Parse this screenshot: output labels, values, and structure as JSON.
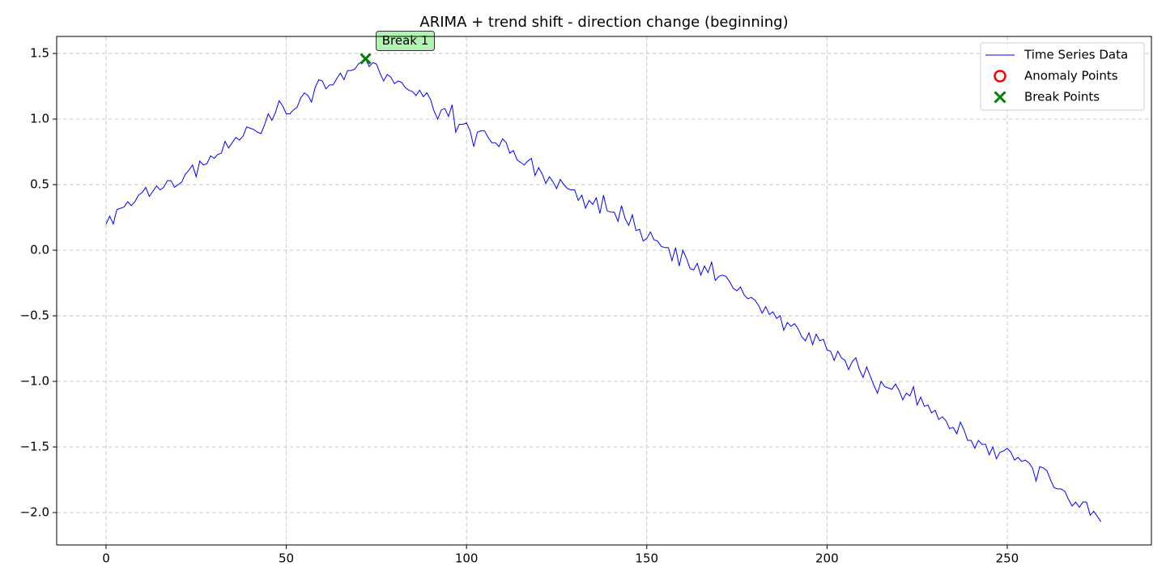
{
  "chart_data": {
    "type": "line",
    "title": "ARIMA + trend shift - direction change (beginning)",
    "xlim": [
      -13.7,
      290
    ],
    "ylim": [
      -2.247,
      1.63
    ],
    "xticks": [
      0,
      50,
      100,
      150,
      200,
      250
    ],
    "yticks": [
      {
        "value": -2.0,
        "label": "−2.0"
      },
      {
        "value": -1.5,
        "label": "−1.5"
      },
      {
        "value": -1.0,
        "label": "−1.0"
      },
      {
        "value": -0.5,
        "label": "−0.5"
      },
      {
        "value": 0.0,
        "label": "0.0"
      },
      0.5,
      {
        "value": 1.0,
        "label": "1.0"
      },
      1.5
    ],
    "grid": true,
    "legend": "upper right",
    "series": [
      {
        "name": "Time Series Data",
        "color": "#0000ff",
        "x": [
          0,
          1,
          2,
          3,
          4,
          5,
          6,
          7,
          8,
          9,
          10,
          11,
          12,
          13,
          14,
          15,
          16,
          17,
          18,
          19,
          20,
          21,
          22,
          23,
          24,
          25,
          26,
          27,
          28,
          29,
          30,
          31,
          32,
          33,
          34,
          35,
          36,
          37,
          38,
          39,
          40,
          41,
          42,
          43,
          44,
          45,
          46,
          47,
          48,
          49,
          50,
          51,
          52,
          53,
          54,
          55,
          56,
          57,
          58,
          59,
          60,
          61,
          62,
          63,
          64,
          65,
          66,
          67,
          68,
          69,
          70,
          71,
          72,
          73,
          74,
          75,
          76,
          77,
          78,
          79,
          80,
          81,
          82,
          83,
          84,
          85,
          86,
          87,
          88,
          89,
          90,
          91,
          92,
          93,
          94,
          95,
          96,
          97,
          98,
          99,
          100,
          101,
          102,
          103,
          104,
          105,
          106,
          107,
          108,
          109,
          110,
          111,
          112,
          113,
          114,
          115,
          116,
          117,
          118,
          119,
          120,
          121,
          122,
          123,
          124,
          125,
          126,
          127,
          128,
          129,
          130,
          131,
          132,
          133,
          134,
          135,
          136,
          137,
          138,
          139,
          140,
          141,
          142,
          143,
          144,
          145,
          146,
          147,
          148,
          149,
          150,
          151,
          152,
          153,
          154,
          155,
          156,
          157,
          158,
          159,
          160,
          161,
          162,
          163,
          164,
          165,
          166,
          167,
          168,
          169,
          170,
          171,
          172,
          173,
          174,
          175,
          176,
          177,
          178,
          179,
          180,
          181,
          182,
          183,
          184,
          185,
          186,
          187,
          188,
          189,
          190,
          191,
          192,
          193,
          194,
          195,
          196,
          197,
          198,
          199,
          200,
          201,
          202,
          203,
          204,
          205,
          206,
          207,
          208,
          209,
          210,
          211,
          212,
          213,
          214,
          215,
          216,
          217,
          218,
          219,
          220,
          221,
          222,
          223,
          224,
          225,
          226,
          227,
          228,
          229,
          230,
          231,
          232,
          233,
          234,
          235,
          236,
          237,
          238,
          239,
          240,
          241,
          242,
          243,
          244,
          245,
          246,
          247,
          248,
          249,
          250,
          251,
          252,
          253,
          254,
          255,
          256,
          257,
          258,
          259,
          260,
          261,
          262,
          263,
          264,
          265,
          266,
          267,
          268,
          269,
          270,
          271,
          272,
          273,
          274,
          275,
          276
        ],
        "values": [
          0.2,
          0.26,
          0.2,
          0.31,
          0.32,
          0.33,
          0.37,
          0.34,
          0.37,
          0.42,
          0.44,
          0.48,
          0.41,
          0.45,
          0.49,
          0.46,
          0.48,
          0.53,
          0.53,
          0.48,
          0.5,
          0.52,
          0.58,
          0.61,
          0.65,
          0.56,
          0.68,
          0.65,
          0.66,
          0.72,
          0.7,
          0.73,
          0.74,
          0.83,
          0.78,
          0.82,
          0.86,
          0.84,
          0.87,
          0.94,
          0.93,
          0.92,
          0.9,
          0.89,
          0.96,
          1.04,
          0.99,
          1.05,
          1.14,
          1.1,
          1.04,
          1.04,
          1.07,
          1.09,
          1.16,
          1.2,
          1.18,
          1.13,
          1.24,
          1.3,
          1.29,
          1.23,
          1.26,
          1.26,
          1.31,
          1.35,
          1.3,
          1.37,
          1.37,
          1.38,
          1.42,
          1.44,
          1.46,
          1.4,
          1.43,
          1.42,
          1.35,
          1.29,
          1.34,
          1.32,
          1.27,
          1.29,
          1.28,
          1.24,
          1.22,
          1.21,
          1.18,
          1.22,
          1.17,
          1.2,
          1.15,
          1.06,
          1.0,
          1.07,
          1.08,
          1.02,
          1.11,
          0.9,
          0.96,
          0.96,
          0.97,
          0.91,
          0.79,
          0.9,
          0.91,
          0.91,
          0.86,
          0.82,
          0.82,
          0.79,
          0.85,
          0.82,
          0.74,
          0.76,
          0.69,
          0.67,
          0.65,
          0.68,
          0.7,
          0.57,
          0.63,
          0.58,
          0.51,
          0.56,
          0.52,
          0.47,
          0.54,
          0.5,
          0.47,
          0.46,
          0.46,
          0.38,
          0.42,
          0.32,
          0.38,
          0.35,
          0.4,
          0.28,
          0.42,
          0.3,
          0.29,
          0.29,
          0.22,
          0.34,
          0.24,
          0.19,
          0.27,
          0.15,
          0.16,
          0.07,
          0.09,
          0.14,
          0.08,
          0.07,
          0.03,
          0.02,
          0.02,
          -0.08,
          0.02,
          -0.12,
          0.0,
          -0.06,
          -0.14,
          -0.15,
          -0.1,
          -0.19,
          -0.12,
          -0.17,
          -0.09,
          -0.23,
          -0.2,
          -0.19,
          -0.2,
          -0.24,
          -0.29,
          -0.31,
          -0.28,
          -0.34,
          -0.37,
          -0.36,
          -0.38,
          -0.42,
          -0.48,
          -0.43,
          -0.49,
          -0.47,
          -0.52,
          -0.5,
          -0.61,
          -0.55,
          -0.58,
          -0.56,
          -0.6,
          -0.66,
          -0.69,
          -0.63,
          -0.72,
          -0.64,
          -0.69,
          -0.68,
          -0.76,
          -0.77,
          -0.84,
          -0.77,
          -0.82,
          -0.84,
          -0.91,
          -0.85,
          -0.82,
          -0.91,
          -0.97,
          -0.89,
          -0.96,
          -1.03,
          -1.09,
          -1.0,
          -1.04,
          -1.05,
          -1.06,
          -1.02,
          -1.07,
          -1.14,
          -1.09,
          -1.11,
          -1.04,
          -1.18,
          -1.12,
          -1.19,
          -1.18,
          -1.24,
          -1.22,
          -1.29,
          -1.27,
          -1.3,
          -1.36,
          -1.35,
          -1.4,
          -1.31,
          -1.37,
          -1.45,
          -1.45,
          -1.51,
          -1.45,
          -1.48,
          -1.48,
          -1.56,
          -1.5,
          -1.59,
          -1.54,
          -1.53,
          -1.51,
          -1.54,
          -1.6,
          -1.58,
          -1.61,
          -1.6,
          -1.62,
          -1.66,
          -1.76,
          -1.65,
          -1.66,
          -1.68,
          -1.75,
          -1.81,
          -1.82,
          -1.82,
          -1.84,
          -1.9,
          -1.95,
          -1.92,
          -1.96,
          -1.92,
          -1.92,
          -2.02,
          -1.99,
          -2.03,
          -2.07
        ]
      },
      {
        "name": "Anomaly Points",
        "color": "#ff0000",
        "marker": "circle",
        "x": [],
        "values": []
      },
      {
        "name": "Break Points",
        "color": "#008000",
        "marker": "x",
        "x": [
          72
        ],
        "values": [
          1.46
        ],
        "labels": [
          "Break 1"
        ]
      }
    ]
  }
}
